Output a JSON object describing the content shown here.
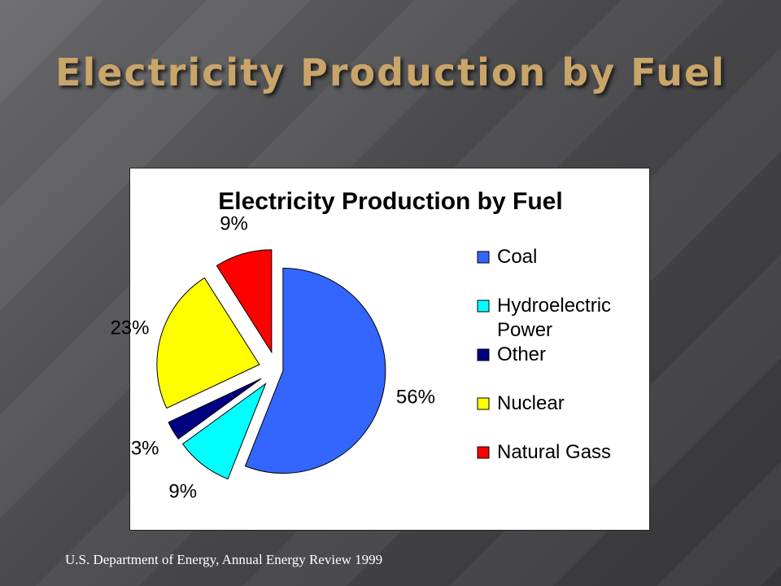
{
  "slide": {
    "title": "Electricity Production by Fuel",
    "source": "U.S. Department of Energy, Annual Energy Review 1999"
  },
  "chart_data": {
    "type": "pie",
    "title": "Electricity Production by Fuel",
    "categories": [
      "Coal",
      "Hydroelectric Power",
      "Other",
      "Nuclear",
      "Natural Gass"
    ],
    "values": [
      56,
      9,
      3,
      23,
      9
    ],
    "labels": [
      "56%",
      "9%",
      "3%",
      "23%",
      "9%"
    ],
    "colors": [
      "#3366ff",
      "#00ffff",
      "#000080",
      "#ffff00",
      "#ff0000"
    ],
    "exploded": true,
    "legend_position": "right",
    "legend_lines": [
      [
        "Coal"
      ],
      [
        "Hydroelectric",
        "Power"
      ],
      [
        "Other"
      ],
      [
        "Nuclear"
      ],
      [
        "Natural Gass"
      ]
    ]
  }
}
